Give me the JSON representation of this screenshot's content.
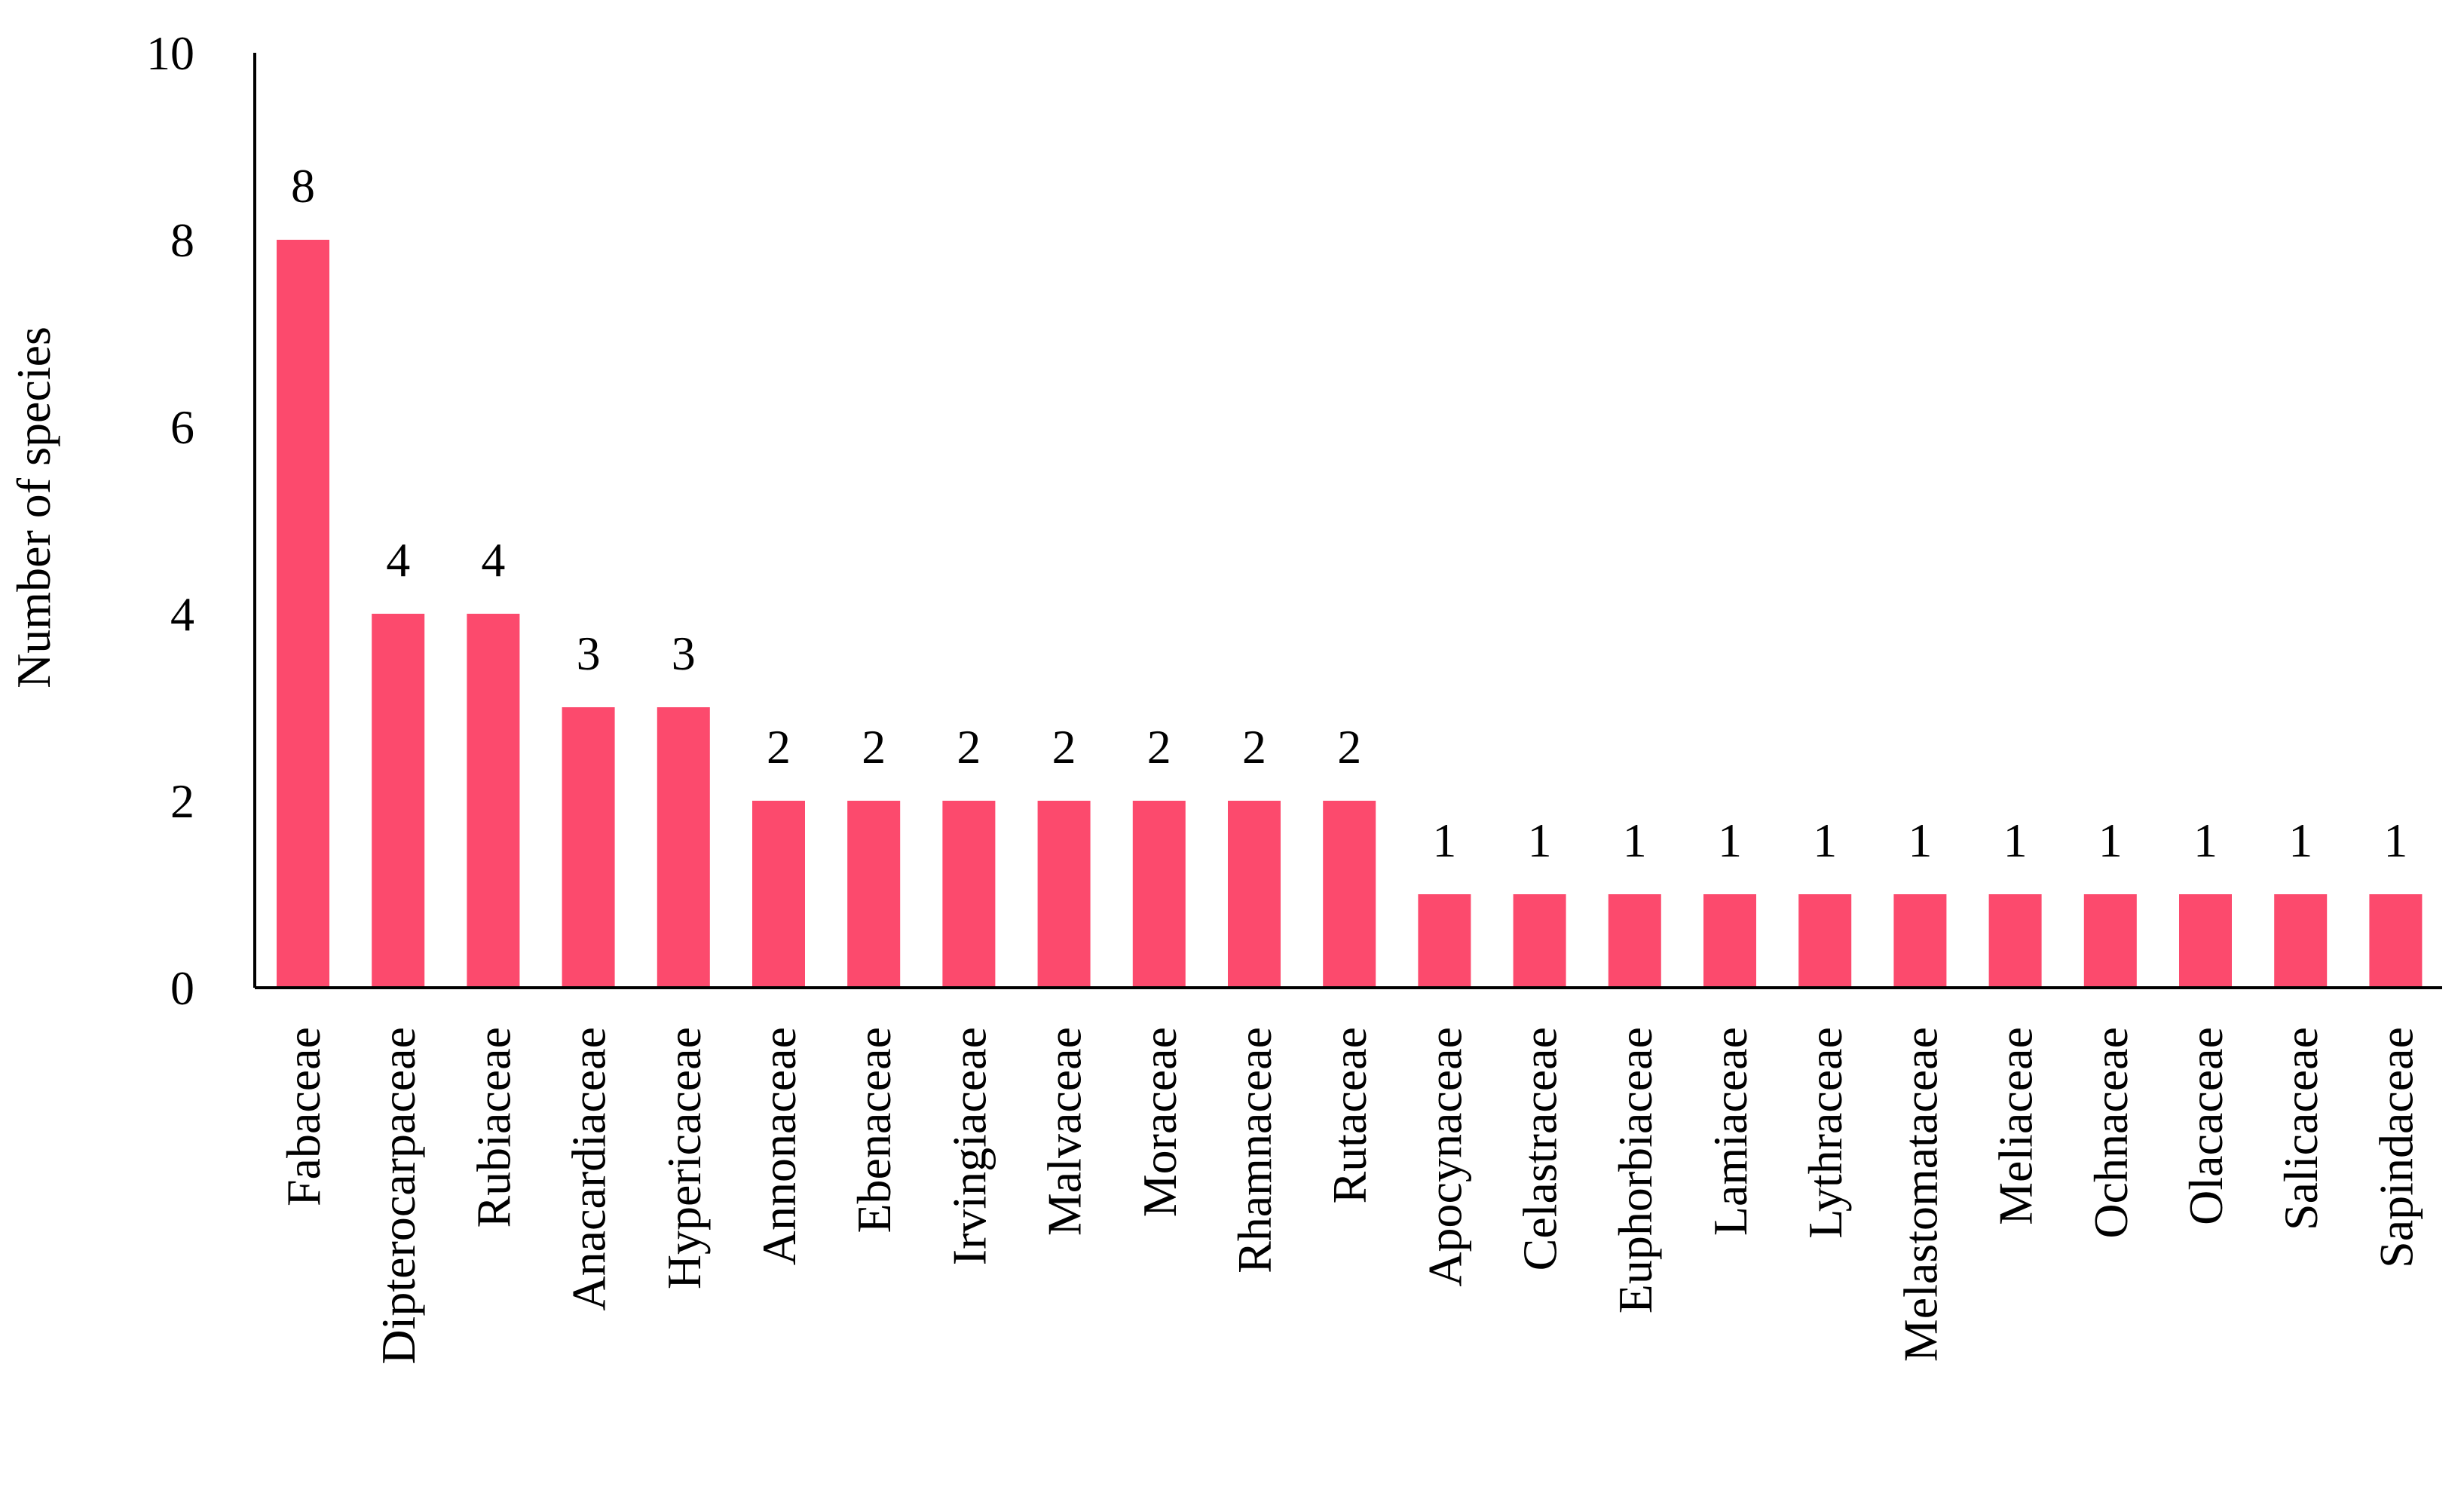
{
  "chart_data": {
    "type": "bar",
    "ylabel": "Number of species",
    "xlabel": "",
    "ylim": [
      0,
      10
    ],
    "yticks": [
      0,
      2,
      4,
      6,
      8,
      10
    ],
    "grid": false,
    "bar_color": "#fc4a6d",
    "data_labels": true,
    "categories": [
      "Fabaceae",
      "Dipterocarpaceae",
      "Rubiaceae",
      "Anacardiaceae",
      "Hypericaceae",
      "Annonaceae",
      "Ebenaceae",
      "Irvingiaceae",
      "Malvaceae",
      "Moraceae",
      "Rhamnaceae",
      "Rutaceae",
      "Apocynaceae",
      "Celastraceae",
      "Euphorbiaceae",
      "Lamiaceae",
      "Lythraceae",
      "Melastomataceae",
      "Meliaceae",
      "Ochnaceae",
      "Olacaceae",
      "Salicaceae",
      "Sapindaceae"
    ],
    "values": [
      8,
      4,
      4,
      3,
      3,
      2,
      2,
      2,
      2,
      2,
      2,
      2,
      1,
      1,
      1,
      1,
      1,
      1,
      1,
      1,
      1,
      1,
      1
    ]
  }
}
